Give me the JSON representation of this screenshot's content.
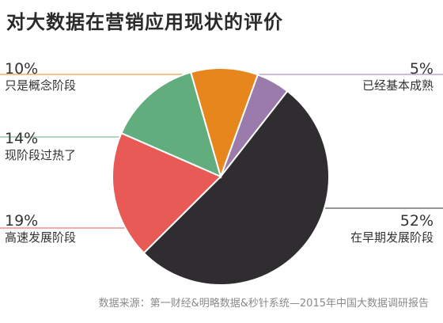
{
  "title": "对大数据在营销应用现状的评价",
  "source": "数据来源：第一财经&明略数据&秒针系统—2015年中国大数据调研报告",
  "chart_data": {
    "type": "pie",
    "title": "对大数据在营销应用现状的评价",
    "slices": [
      {
        "label": "已经基本成熟",
        "value": 5,
        "value_label": "5%",
        "color": "#9b7bab"
      },
      {
        "label": "在早期发展阶段",
        "value": 52,
        "value_label": "52%",
        "color": "#2f2d2f"
      },
      {
        "label": "高速发展阶段",
        "value": 19,
        "value_label": "19%",
        "color": "#e85a56"
      },
      {
        "label": "现阶段过热了",
        "value": 14,
        "value_label": "14%",
        "color": "#62ad7e"
      },
      {
        "label": "只是概念阶段",
        "value": 10,
        "value_label": "10%",
        "color": "#e8861e"
      }
    ]
  }
}
